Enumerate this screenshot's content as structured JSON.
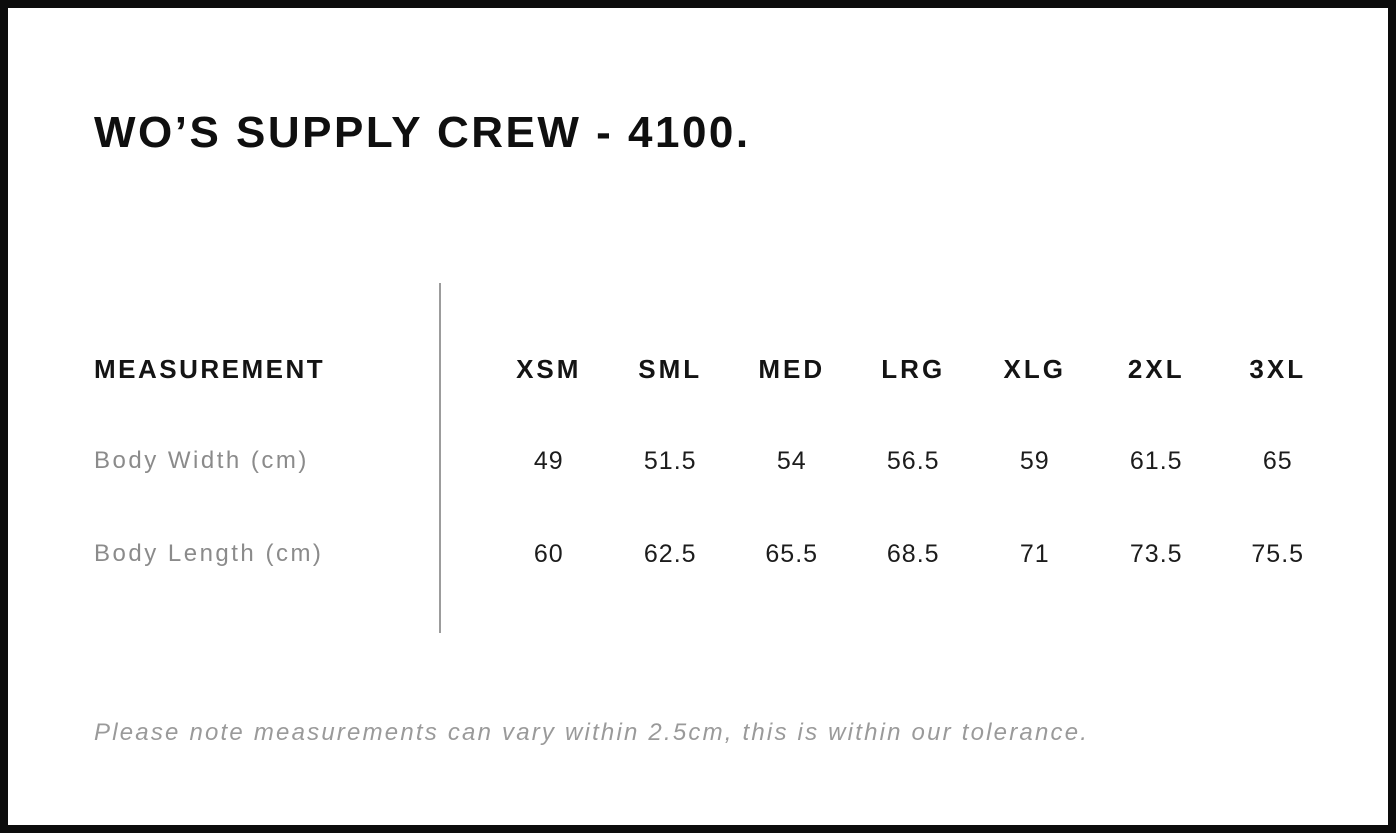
{
  "header": {
    "title": "WO’S SUPPLY CREW - 4100."
  },
  "table": {
    "measurement_header": "MEASUREMENT",
    "size_headers": [
      "XSM",
      "SML",
      "MED",
      "LRG",
      "XLG",
      "2XL",
      "3XL"
    ],
    "rows": [
      {
        "label": "Body Width (cm)",
        "values": [
          "49",
          "51.5",
          "54",
          "56.5",
          "59",
          "61.5",
          "65"
        ]
      },
      {
        "label": "Body Length (cm)",
        "values": [
          "60",
          "62.5",
          "65.5",
          "68.5",
          "71",
          "73.5",
          "75.5"
        ]
      }
    ]
  },
  "footer": {
    "note": "Please note measurements can vary within 2.5cm, this is within our tolerance."
  },
  "colors": {
    "text_primary": "#141414",
    "label_gray": "#8b8b8b",
    "note_gray": "#9a9a9a",
    "divider_gray": "#9c9c9c",
    "frame_border": "#0c0c0c",
    "background": "#ffffff"
  },
  "chart_data": {
    "type": "table",
    "title": "WO’S SUPPLY CREW - 4100.",
    "columns": [
      "MEASUREMENT",
      "XSM",
      "SML",
      "MED",
      "LRG",
      "XLG",
      "2XL",
      "3XL"
    ],
    "rows": [
      {
        "measurement": "Body Width (cm)",
        "values": [
          49,
          51.5,
          54,
          56.5,
          59,
          61.5,
          65
        ]
      },
      {
        "measurement": "Body Length (cm)",
        "values": [
          60,
          62.5,
          65.5,
          68.5,
          71,
          73.5,
          75.5
        ]
      }
    ],
    "note": "Please note measurements can vary within 2.5cm, this is within our tolerance."
  }
}
